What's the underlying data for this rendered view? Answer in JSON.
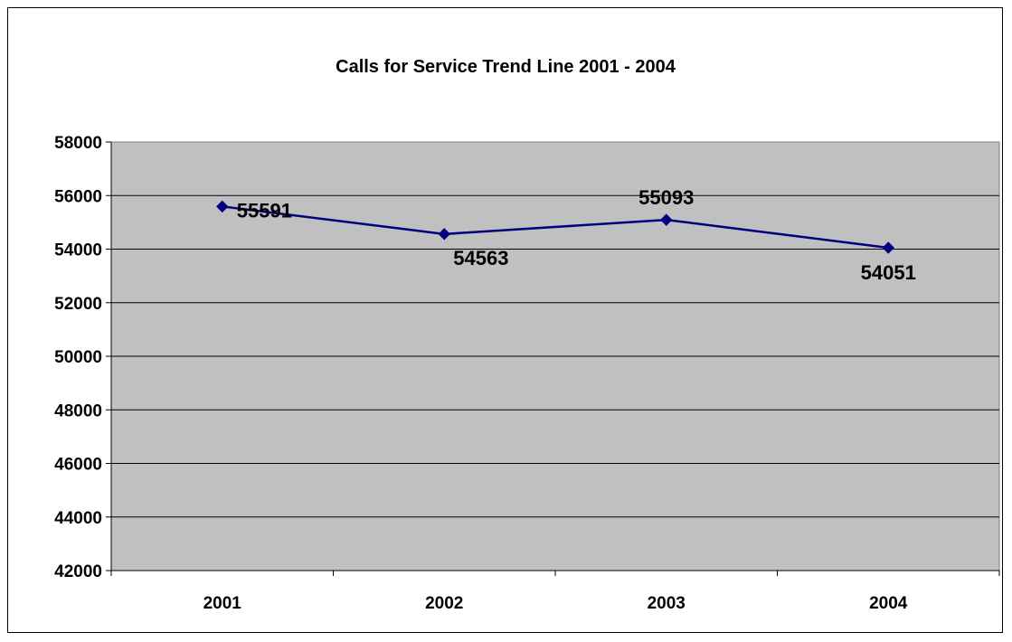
{
  "chart_data": {
    "type": "line",
    "title": "Calls for Service Trend Line 2001 - 2004",
    "xlabel": "",
    "ylabel": "",
    "categories": [
      "2001",
      "2002",
      "2003",
      "2004"
    ],
    "series": [
      {
        "values": [
          55591,
          54563,
          55093,
          54051
        ]
      }
    ],
    "data_labels": [
      "55591",
      "54563",
      "55093",
      "54051"
    ],
    "ylim": [
      42000,
      58000
    ],
    "yticks": [
      "58000",
      "56000",
      "54000",
      "52000",
      "50000",
      "48000",
      "46000",
      "44000",
      "42000"
    ],
    "grid": true,
    "legend": "none",
    "colors": {
      "plot_background": "#C0C0C0",
      "line": "#000080",
      "gridline": "#000000"
    }
  }
}
